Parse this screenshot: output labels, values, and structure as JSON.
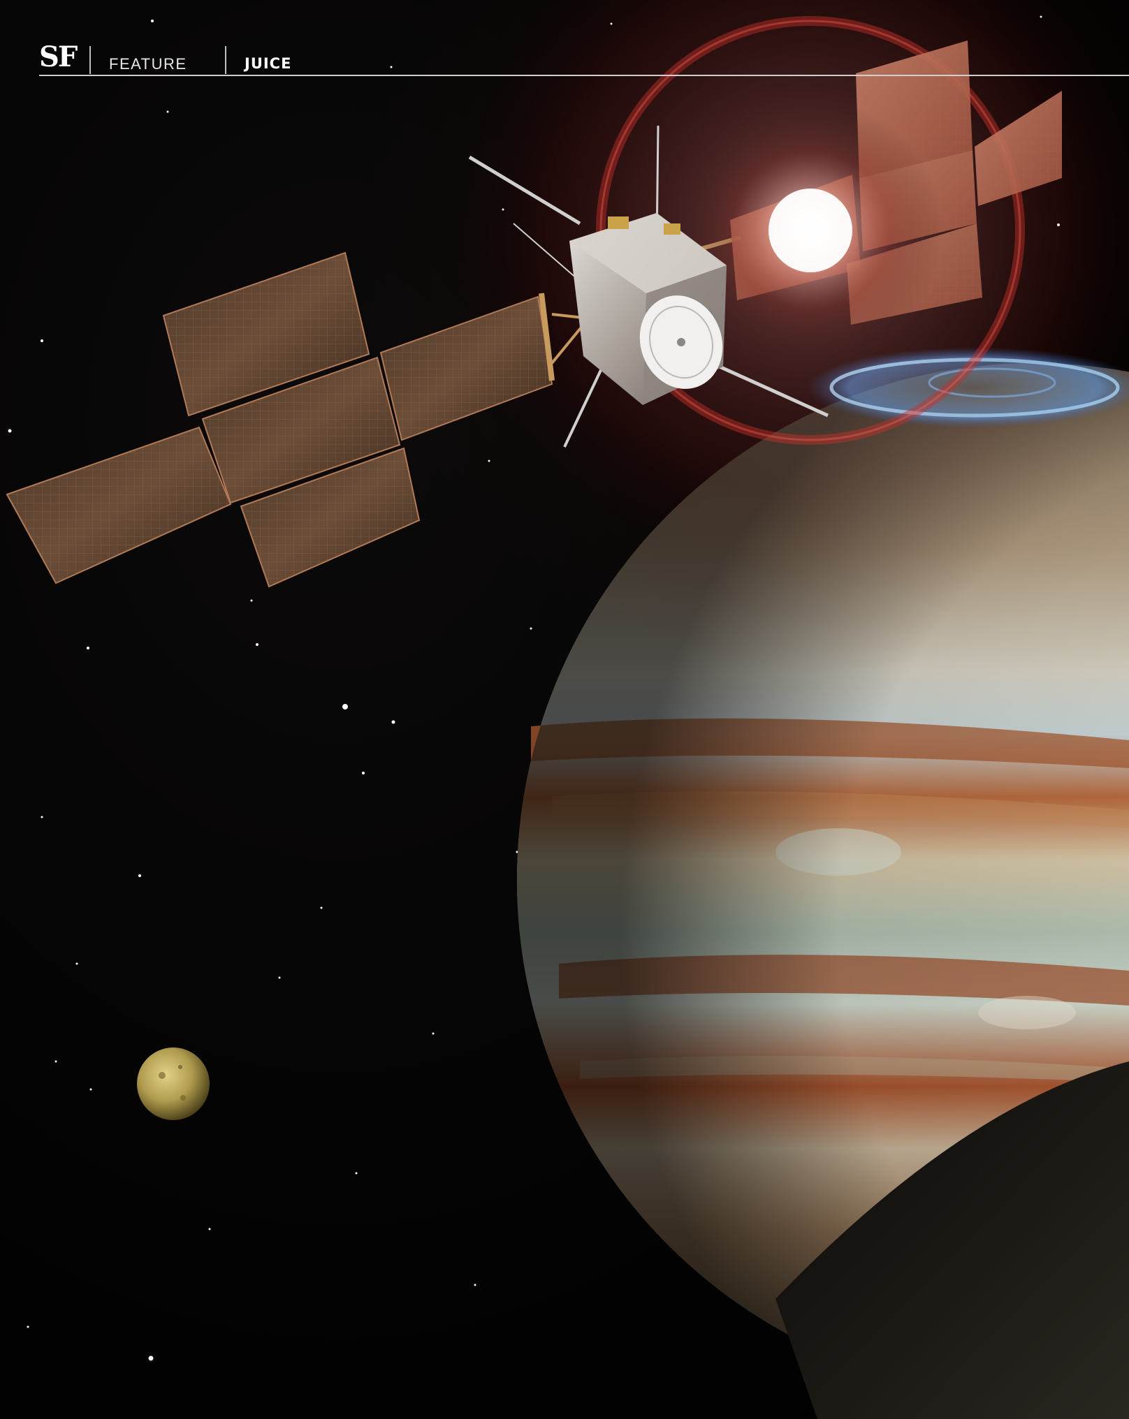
{
  "header": {
    "brand": "SF",
    "section": "FEATURE",
    "topic": "JUICE"
  },
  "colors": {
    "background": "#000000",
    "flare_red": "#b3201a",
    "solar_panel": "#6b4b35",
    "aurora": "#6fb8ff",
    "io": "#b9a658",
    "jupiter_band": "#b5683e"
  },
  "illustration": {
    "subjects": [
      "spacecraft",
      "jupiter",
      "io-moon",
      "aurora",
      "sun-flare",
      "starfield"
    ]
  }
}
